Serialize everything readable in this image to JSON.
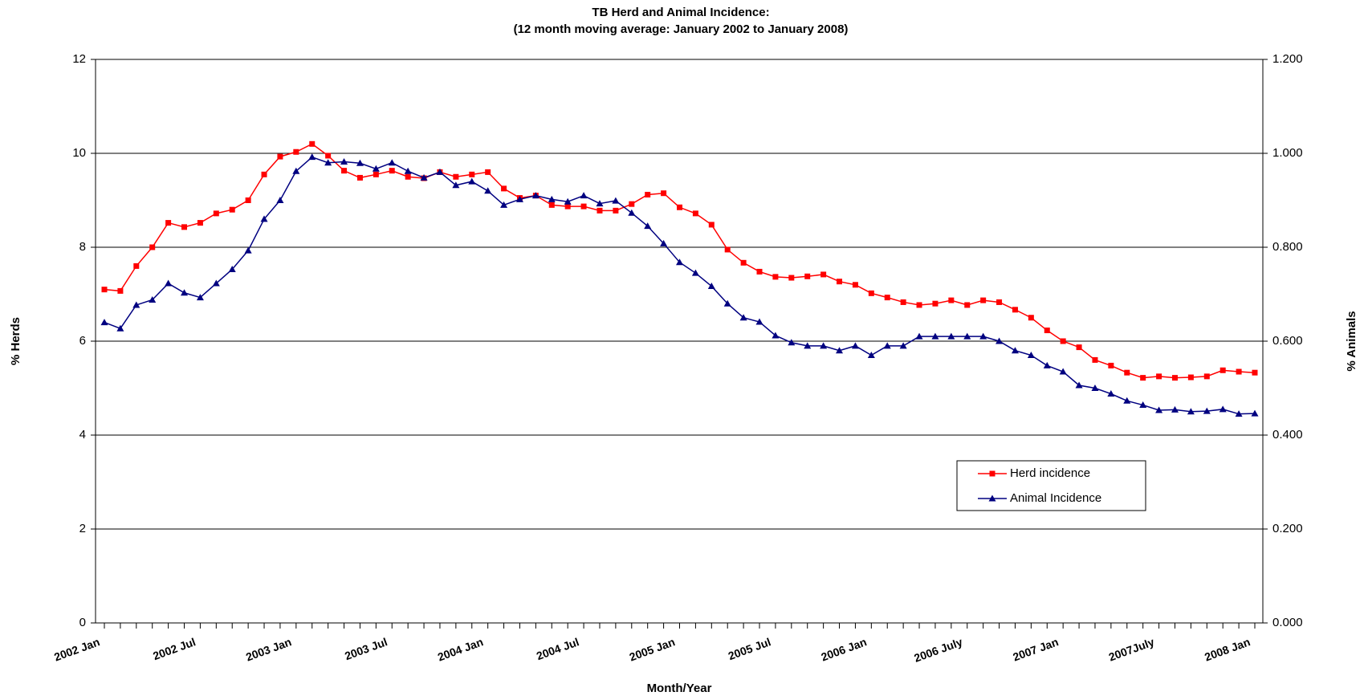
{
  "chart_data": {
    "type": "line",
    "title": "TB Herd and Animal Incidence:",
    "subtitle": "(12 month moving average: January 2002 to January 2008)",
    "x_label": "Month/Year",
    "y_label": "% Herds",
    "y2_label": "% Animals",
    "categories": [
      "2002 Jan",
      null,
      null,
      null,
      null,
      null,
      "2002 Jul",
      null,
      null,
      null,
      null,
      null,
      "2003 Jan",
      null,
      null,
      null,
      null,
      null,
      "2003 Jul",
      null,
      null,
      null,
      null,
      null,
      "2004 Jan",
      null,
      null,
      null,
      null,
      null,
      "2004 Jul",
      null,
      null,
      null,
      null,
      null,
      "2005 Jan",
      null,
      null,
      null,
      null,
      null,
      "2005 Jul",
      null,
      null,
      null,
      null,
      null,
      "2006 Jan",
      null,
      null,
      null,
      null,
      null,
      "2006 July",
      null,
      null,
      null,
      null,
      null,
      "2007 Jan",
      null,
      null,
      null,
      null,
      null,
      "2007July",
      null,
      null,
      null,
      null,
      null,
      "2008 Jan"
    ],
    "series": [
      {
        "name": "Herd incidence",
        "color": "#ff0000",
        "marker": "square",
        "axis": "y",
        "values": [
          7.1,
          7.07,
          7.6,
          8.0,
          8.52,
          8.43,
          8.52,
          8.72,
          8.8,
          9.0,
          9.55,
          9.93,
          10.03,
          10.2,
          9.95,
          9.63,
          9.48,
          9.55,
          9.63,
          9.5,
          9.47,
          9.6,
          9.5,
          9.55,
          9.6,
          9.25,
          9.05,
          9.1,
          8.9,
          8.87,
          8.87,
          8.78,
          8.78,
          8.92,
          9.12,
          9.15,
          8.85,
          8.72,
          8.48,
          7.95,
          7.67,
          7.48,
          7.37,
          7.35,
          7.38,
          7.42,
          7.27,
          7.2,
          7.02,
          6.93,
          6.83,
          6.77,
          6.8,
          6.87,
          6.77,
          6.87,
          6.83,
          6.67,
          6.5,
          6.23,
          6.0,
          5.87,
          5.6,
          5.48,
          5.33,
          5.22,
          5.25,
          5.22,
          5.23,
          5.25,
          5.38,
          5.35,
          5.33
        ]
      },
      {
        "name": "Animal Incidence",
        "color": "#000080",
        "marker": "triangle",
        "axis": "y2",
        "values": [
          0.64,
          0.627,
          0.677,
          0.688,
          0.723,
          0.703,
          0.693,
          0.723,
          0.753,
          0.793,
          0.86,
          0.9,
          0.962,
          0.992,
          0.98,
          0.982,
          0.979,
          0.967,
          0.98,
          0.962,
          0.948,
          0.96,
          0.932,
          0.94,
          0.92,
          0.89,
          0.902,
          0.91,
          0.902,
          0.897,
          0.91,
          0.893,
          0.899,
          0.873,
          0.845,
          0.808,
          0.768,
          0.745,
          0.717,
          0.68,
          0.65,
          0.641,
          0.612,
          0.597,
          0.59,
          0.59,
          0.58,
          0.59,
          0.57,
          0.59,
          0.59,
          0.61,
          0.61,
          0.61,
          0.61,
          0.61,
          0.6,
          0.58,
          0.57,
          0.548,
          0.535,
          0.506,
          0.5,
          0.488,
          0.473,
          0.464,
          0.453,
          0.454,
          0.45,
          0.451,
          0.455,
          0.445,
          0.446
        ]
      }
    ],
    "ylim": [
      0,
      12
    ],
    "yticks": [
      0,
      2,
      4,
      6,
      8,
      10,
      12
    ],
    "y2lim": [
      0,
      1.2
    ],
    "y2ticks": [
      {
        "value": 0,
        "label": "0.000"
      },
      {
        "value": 0.2,
        "label": "0.200"
      },
      {
        "value": 0.4,
        "label": "0.400"
      },
      {
        "value": 0.6,
        "label": "0.600"
      },
      {
        "value": 0.8,
        "label": "0.800"
      },
      {
        "value": 1.0,
        "label": "1.000"
      },
      {
        "value": 1.2,
        "label": "1.200"
      }
    ],
    "grid": true,
    "legend_position": "right"
  }
}
